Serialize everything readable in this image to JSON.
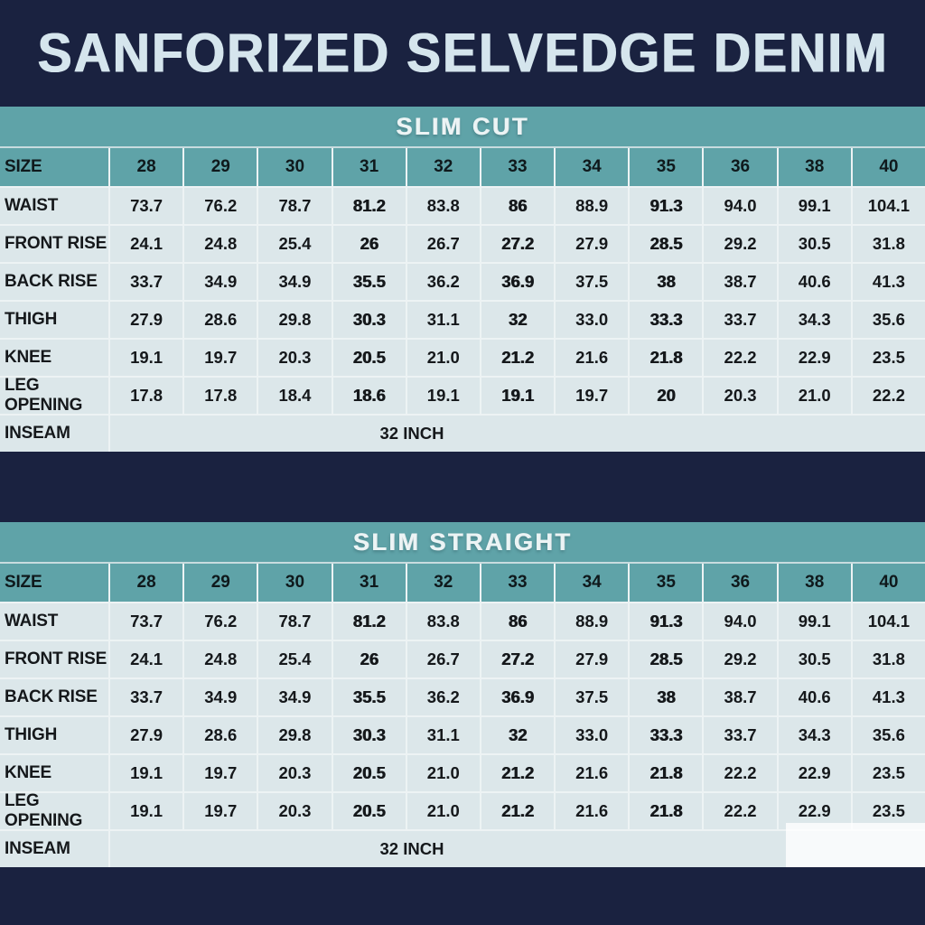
{
  "title": "SANFORIZED SELVEDGE DENIM",
  "colors": {
    "navy_background": "#1a2240",
    "teal_header": "#5fa3a8",
    "cell_background": "#dce7ea",
    "gridline": "#edf3f4",
    "title_text": "#d5e5ed",
    "band_text": "#ecf4f5",
    "data_text": "#15181b"
  },
  "chart_data": [
    {
      "type": "table",
      "title": "SLIM CUT",
      "size_label": "SIZE",
      "sizes": [
        "28",
        "29",
        "30",
        "31",
        "32",
        "33",
        "34",
        "35",
        "36",
        "38",
        "40"
      ],
      "rows": [
        {
          "label": "WAIST",
          "values": [
            "73.7",
            "76.2",
            "78.7",
            "81.2",
            "83.8",
            "86",
            "88.9",
            "91.3",
            "94.0",
            "99.1",
            "104.1"
          ]
        },
        {
          "label": "FRONT RISE",
          "values": [
            "24.1",
            "24.8",
            "25.4",
            "26",
            "26.7",
            "27.2",
            "27.9",
            "28.5",
            "29.2",
            "30.5",
            "31.8"
          ]
        },
        {
          "label": "BACK RISE",
          "values": [
            "33.7",
            "34.9",
            "34.9",
            "35.5",
            "36.2",
            "36.9",
            "37.5",
            "38",
            "38.7",
            "40.6",
            "41.3"
          ]
        },
        {
          "label": "THIGH",
          "values": [
            "27.9",
            "28.6",
            "29.8",
            "30.3",
            "31.1",
            "32",
            "33.0",
            "33.3",
            "33.7",
            "34.3",
            "35.6"
          ]
        },
        {
          "label": "KNEE",
          "values": [
            "19.1",
            "19.7",
            "20.3",
            "20.5",
            "21.0",
            "21.2",
            "21.6",
            "21.8",
            "22.2",
            "22.9",
            "23.5"
          ]
        },
        {
          "label": "LEG OPENING",
          "values": [
            "17.8",
            "17.8",
            "18.4",
            "18.6",
            "19.1",
            "19.1",
            "19.7",
            "20",
            "20.3",
            "21.0",
            "22.2"
          ]
        }
      ],
      "inseam_label": "INSEAM",
      "inseam_value": "32 INCH"
    },
    {
      "type": "table",
      "title": "SLIM STRAIGHT",
      "size_label": "SIZE",
      "sizes": [
        "28",
        "29",
        "30",
        "31",
        "32",
        "33",
        "34",
        "35",
        "36",
        "38",
        "40"
      ],
      "rows": [
        {
          "label": "WAIST",
          "values": [
            "73.7",
            "76.2",
            "78.7",
            "81.2",
            "83.8",
            "86",
            "88.9",
            "91.3",
            "94.0",
            "99.1",
            "104.1"
          ]
        },
        {
          "label": "FRONT RISE",
          "values": [
            "24.1",
            "24.8",
            "25.4",
            "26",
            "26.7",
            "27.2",
            "27.9",
            "28.5",
            "29.2",
            "30.5",
            "31.8"
          ]
        },
        {
          "label": "BACK RISE",
          "values": [
            "33.7",
            "34.9",
            "34.9",
            "35.5",
            "36.2",
            "36.9",
            "37.5",
            "38",
            "38.7",
            "40.6",
            "41.3"
          ]
        },
        {
          "label": "THIGH",
          "values": [
            "27.9",
            "28.6",
            "29.8",
            "30.3",
            "31.1",
            "32",
            "33.0",
            "33.3",
            "33.7",
            "34.3",
            "35.6"
          ]
        },
        {
          "label": "KNEE",
          "values": [
            "19.1",
            "19.7",
            "20.3",
            "20.5",
            "21.0",
            "21.2",
            "21.6",
            "21.8",
            "22.2",
            "22.9",
            "23.5"
          ]
        },
        {
          "label": "LEG OPENING",
          "values": [
            "19.1",
            "19.7",
            "20.3",
            "20.5",
            "21.0",
            "21.2",
            "21.6",
            "21.8",
            "22.2",
            "22.9",
            "23.5"
          ]
        }
      ],
      "inseam_label": "INSEAM",
      "inseam_value": "32 INCH"
    }
  ]
}
